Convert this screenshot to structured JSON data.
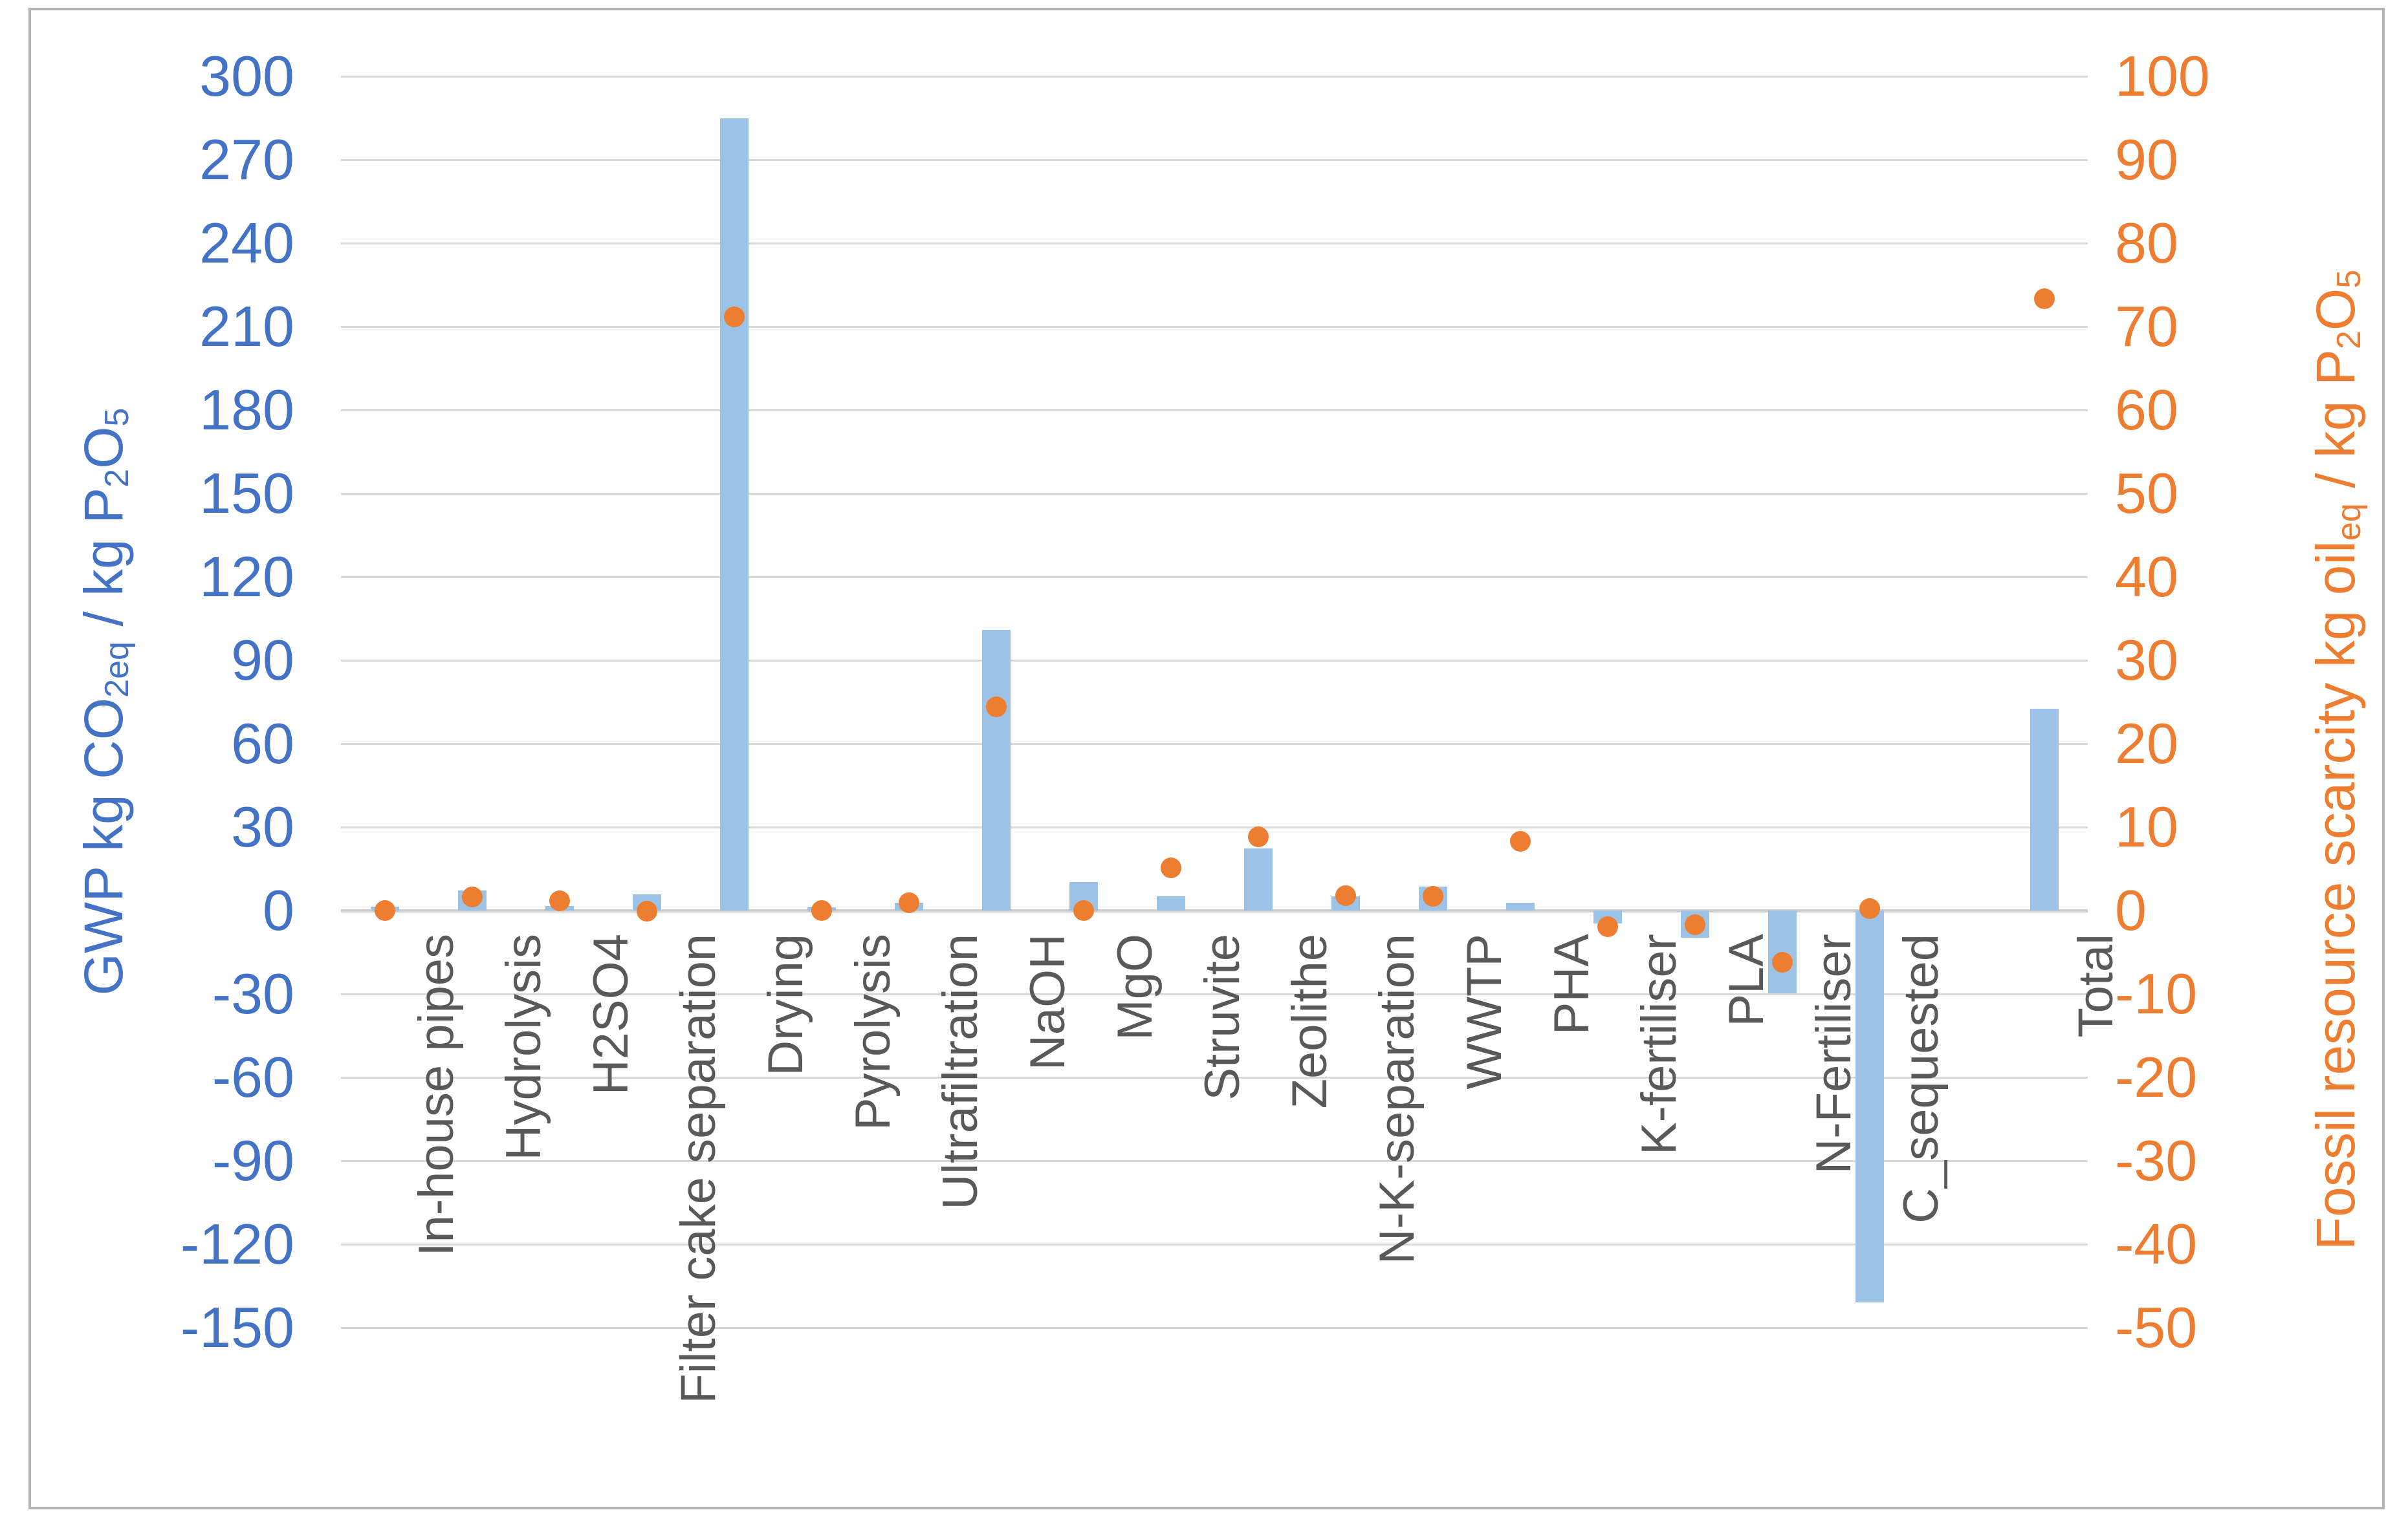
{
  "chart_data": {
    "type": "combo",
    "categories": [
      "In-house pipes",
      "Hydrolysis",
      "H2SO4",
      "Filter cake separation",
      "Drying",
      "Pyrolysis",
      "Ultrafiltration",
      "NaOH",
      "MgO",
      "Struvite",
      "Zeolithe",
      "N-K-separation",
      "WWTP",
      "PHA",
      "K-fertiliser",
      "PLA",
      "N-Fertiliser",
      "C_sequested",
      "",
      "Total"
    ],
    "series": [
      {
        "name": "GWP kg CO2eq / kg P2O5",
        "type": "bar",
        "axis": "left",
        "color": "#9cc3e6",
        "values": [
          1.3,
          7.1,
          1.6,
          5.7,
          285,
          1.2,
          2.8,
          101,
          10.2,
          5.1,
          22.4,
          5.1,
          8.7,
          2.8,
          -4.7,
          -9.7,
          -29.8,
          -141,
          null,
          72.6
        ]
      },
      {
        "name": "Fossil resource scarcity kg oileq / kg P2O5",
        "type": "scatter",
        "axis": "right",
        "color": "#ed7d31",
        "values": [
          0,
          1.6,
          1.2,
          -0.1,
          71.2,
          0,
          0.9,
          24.4,
          0,
          5.1,
          8.8,
          1.8,
          1.7,
          8.3,
          -1.9,
          -1.7,
          -6.2,
          0.2,
          null,
          73.3
        ]
      }
    ],
    "left_axis": {
      "min": -150,
      "max": 300,
      "step": 30,
      "color": "#4472c4",
      "ticks": [
        300,
        270,
        240,
        210,
        180,
        150,
        120,
        90,
        60,
        30,
        0,
        -30,
        -60,
        -90,
        -120,
        -150
      ],
      "title_segments": [
        {
          "t": "GWP kg CO"
        },
        {
          "sub": "2eq"
        },
        {
          "t": " / kg P"
        },
        {
          "sub": "2"
        },
        {
          "t": "O"
        },
        {
          "sub": "5"
        }
      ]
    },
    "right_axis": {
      "min": -50,
      "max": 100,
      "step": 10,
      "color": "#ed7d31",
      "ticks": [
        100,
        90,
        80,
        70,
        60,
        50,
        40,
        30,
        20,
        10,
        0,
        -10,
        -20,
        -30,
        -40,
        -50
      ],
      "title_segments": [
        {
          "t": "Fossil resource scarcity kg oil"
        },
        {
          "sub": "eq"
        },
        {
          "t": " / kg P"
        },
        {
          "sub": "2"
        },
        {
          "t": "O"
        },
        {
          "sub": "5"
        }
      ]
    },
    "grid": true,
    "legend": false,
    "category_label_color": "#595959",
    "gridline_color": "#d9d9d9",
    "background": "#ffffff"
  }
}
